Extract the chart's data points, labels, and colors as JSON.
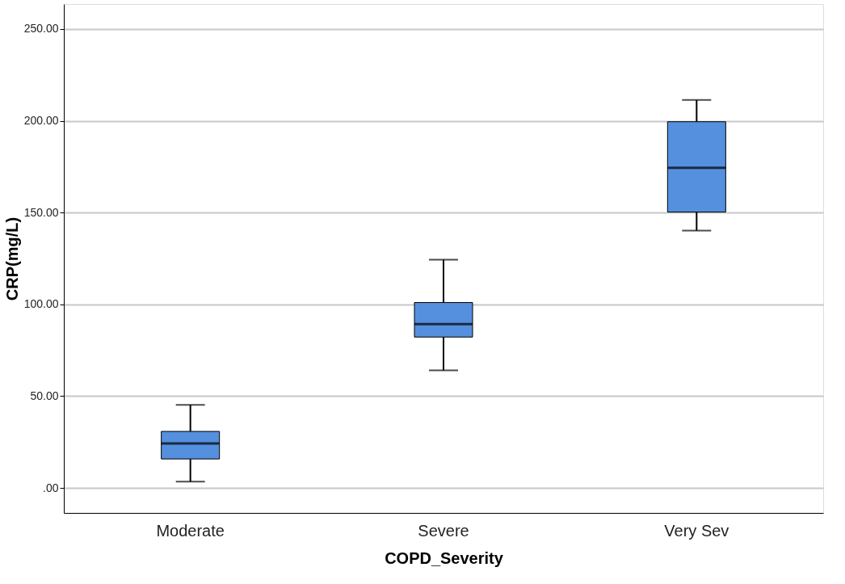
{
  "chart_data": {
    "type": "box",
    "xlabel": "COPD_Severity",
    "ylabel": "CRP(mg/L)",
    "categories": [
      "Moderate",
      "Severe",
      "Very Sev"
    ],
    "series": [
      {
        "color": "#5590de",
        "boxes": [
          {
            "low": 3.5,
            "q1": 15.8,
            "median": 24.2,
            "q3": 30.8,
            "high": 45.3
          },
          {
            "low": 64.1,
            "q1": 82.2,
            "median": 89.2,
            "q3": 101,
            "high": 124.3
          },
          {
            "low": 140.2,
            "q1": 150.3,
            "median": 174.4,
            "q3": 199.5,
            "high": 211.3
          }
        ]
      }
    ],
    "ylim": [
      -13.6,
      263.6
    ],
    "yticks": [
      {
        "value": 0,
        "label": ".00"
      },
      {
        "value": 50,
        "label": "50.00"
      },
      {
        "value": 100,
        "label": "100.00"
      },
      {
        "value": 150,
        "label": "150.00"
      },
      {
        "value": 200,
        "label": "200.00"
      },
      {
        "value": 250,
        "label": "250.00"
      }
    ],
    "grid": "y"
  }
}
